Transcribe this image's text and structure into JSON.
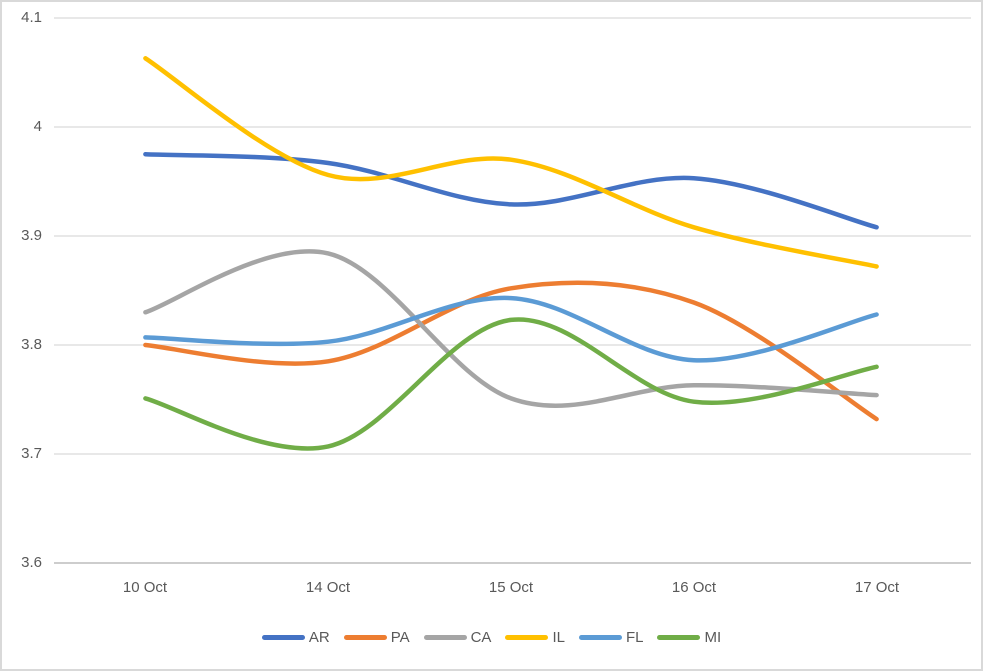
{
  "chart_data": {
    "type": "line",
    "smooth": true,
    "title": "",
    "categories": [
      "10 Oct",
      "14 Oct",
      "15 Oct",
      "16 Oct",
      "17 Oct"
    ],
    "series": [
      {
        "name": "AR",
        "color": "#4472C4",
        "values": [
          3.975,
          3.967,
          3.929,
          3.953,
          3.908
        ]
      },
      {
        "name": "PA",
        "color": "#ED7D31",
        "values": [
          3.8,
          3.785,
          3.852,
          3.839,
          3.732
        ]
      },
      {
        "name": "CA",
        "color": "#A5A5A5",
        "values": [
          3.83,
          3.884,
          3.751,
          3.763,
          3.754
        ]
      },
      {
        "name": "IL",
        "color": "#FFC000",
        "values": [
          4.063,
          3.956,
          3.97,
          3.908,
          3.872
        ]
      },
      {
        "name": "FL",
        "color": "#5B9BD5",
        "values": [
          3.807,
          3.803,
          3.843,
          3.786,
          3.828
        ]
      },
      {
        "name": "MI",
        "color": "#70AD47",
        "values": [
          3.751,
          3.707,
          3.823,
          3.748,
          3.78
        ]
      }
    ],
    "ylim": [
      3.6,
      4.1
    ],
    "yticks": [
      4.1,
      4.0,
      3.9,
      3.8,
      3.7,
      3.6
    ],
    "ytick_labels": [
      "4.1",
      "4",
      "3.9",
      "3.8",
      "3.7",
      "3.6"
    ],
    "xlabel": "",
    "ylabel": "",
    "grid": true,
    "legend_position": "bottom",
    "colors": {
      "gridline": "#D9D9D9",
      "axis_line": "#C6C6C6",
      "tick_text": "#595959",
      "background": "#FFFFFF",
      "border": "#D9D9D9"
    }
  }
}
